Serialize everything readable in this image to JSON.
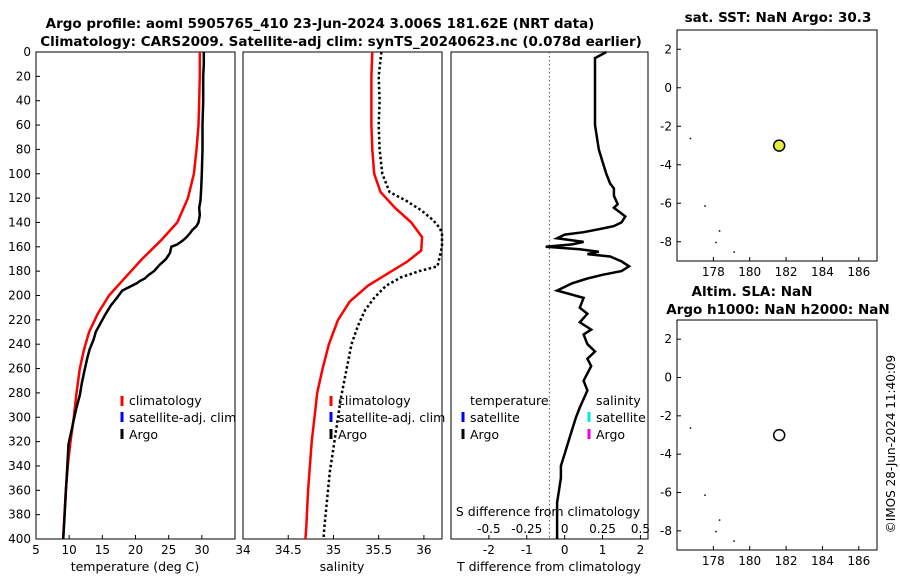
{
  "header": {
    "title_line1": "Argo profile: aoml 5905765_410 23-Jun-2024 3.006S 181.62E (NRT data)",
    "title_line2": "Climatology: CARS2009. Satellite-adj clim: synTS_20240623.nc (0.078d earlier)",
    "sst_title": "sat. SST: NaN Argo: 30.3",
    "sla_title_line1": "Altim. SLA: NaN",
    "sla_title_line2": "Argo h1000: NaN h2000: NaN",
    "timestamp": "©IMOS 28-Jun-2024 11:40:09"
  },
  "colors": {
    "climatology": "#ff0000",
    "satellite": "#0000ff",
    "argo": "#000000",
    "sal_satellite": "#00e5ee",
    "sal_argo": "#ee00ee",
    "marker_sst": "#e4ee3a"
  },
  "chart_data": [
    {
      "type": "line",
      "name": "temperature",
      "xlabel": "temperature (deg C)",
      "xlim": [
        5,
        35
      ],
      "ylim": [
        0,
        400
      ],
      "xticks": [
        "5",
        "10",
        "15",
        "20",
        "25",
        "30"
      ],
      "yticks": [
        "0",
        "20",
        "40",
        "60",
        "80",
        "100",
        "120",
        "140",
        "160",
        "180",
        "200",
        "220",
        "240",
        "260",
        "280",
        "300",
        "320",
        "340",
        "360",
        "380",
        "400"
      ],
      "legend": [
        "climatology",
        "satellite-adj. clim",
        "Argo"
      ],
      "series": [
        {
          "name": "climatology",
          "style": "red",
          "x": [
            29.7,
            29.7,
            29.6,
            29.5,
            29.2,
            28.8,
            27.9,
            26.3,
            23.8,
            21.0,
            18.5,
            16.0,
            14.3,
            13.0,
            12.2,
            11.6,
            11.1,
            10.7,
            10.2,
            9.8,
            9.5,
            9.3,
            9.1
          ],
          "depth": [
            0,
            20,
            40,
            60,
            80,
            100,
            120,
            140,
            155,
            170,
            185,
            200,
            215,
            230,
            245,
            260,
            280,
            300,
            320,
            340,
            360,
            380,
            400
          ]
        },
        {
          "name": "Argo",
          "style": "black",
          "x": [
            30.3,
            30.3,
            30.2,
            30.2,
            30.1,
            30.1,
            30.0,
            29.9,
            29.8,
            29.6,
            29.7,
            29.5,
            29.2,
            28.6,
            28.2,
            27.7,
            27.1,
            26.3,
            25.4,
            25.2,
            24.6,
            23.6,
            22.8,
            22.0,
            21.4,
            20.7,
            20.2,
            18.0,
            17.2,
            16.3,
            15.4,
            14.6,
            14.0,
            13.7,
            13.1,
            12.7,
            12.3,
            11.9,
            11.6,
            11.1,
            10.7,
            10.3,
            9.9,
            9.7,
            9.5,
            9.3,
            9.1
          ],
          "depth": [
            0,
            10,
            20,
            40,
            60,
            80,
            100,
            112,
            122,
            128,
            134,
            140,
            143,
            146,
            149,
            152,
            155,
            158,
            160,
            165,
            170,
            175,
            180,
            183,
            186,
            188,
            190,
            196,
            202,
            208,
            216,
            224,
            230,
            236,
            244,
            252,
            262,
            272,
            282,
            292,
            302,
            312,
            322,
            342,
            362,
            382,
            400
          ]
        }
      ]
    },
    {
      "type": "line",
      "name": "salinity",
      "xlabel": "salinity",
      "xlim": [
        34,
        36.2
      ],
      "ylim": [
        0,
        400
      ],
      "xticks": [
        "34",
        "34.5",
        "35",
        "35.5",
        "36"
      ],
      "legend": [
        "climatology",
        "satellite-adj. clim",
        "Argo"
      ],
      "series": [
        {
          "name": "climatology",
          "style": "red",
          "x": [
            35.43,
            35.42,
            35.42,
            35.42,
            35.43,
            35.45,
            35.52,
            35.68,
            35.86,
            35.98,
            35.97,
            35.82,
            35.6,
            35.38,
            35.18,
            35.05,
            34.95,
            34.88,
            34.82,
            34.79,
            34.76,
            34.74,
            34.72,
            34.71,
            34.7,
            34.69
          ],
          "depth": [
            0,
            20,
            40,
            60,
            80,
            100,
            115,
            128,
            140,
            152,
            163,
            172,
            182,
            192,
            205,
            220,
            240,
            260,
            280,
            300,
            320,
            340,
            360,
            375,
            390,
            400
          ]
        },
        {
          "name": "Argo",
          "style": "dotted",
          "x": [
            35.53,
            35.5,
            35.51,
            35.5,
            35.51,
            35.54,
            35.62,
            35.8,
            35.97,
            36.1,
            36.18,
            36.2,
            36.2,
            36.15,
            35.95,
            35.75,
            35.58,
            35.45,
            35.35,
            35.27,
            35.2,
            35.16,
            35.12,
            35.08,
            35.05,
            35.02,
            34.99,
            34.96,
            34.94,
            34.92,
            34.9,
            34.89
          ],
          "depth": [
            0,
            20,
            40,
            60,
            80,
            100,
            115,
            122,
            130,
            138,
            145,
            150,
            160,
            176,
            180,
            185,
            192,
            202,
            212,
            225,
            240,
            255,
            270,
            285,
            300,
            315,
            330,
            345,
            360,
            375,
            390,
            400
          ]
        }
      ]
    },
    {
      "type": "line",
      "name": "T difference",
      "xlabel": "T difference from climatology",
      "xlim": [
        -3,
        2.2
      ],
      "ylim": [
        0,
        400
      ],
      "xticks": [
        "-2",
        "-1",
        "0",
        "1",
        "2"
      ],
      "top_axis_label": "S difference from climatology",
      "top_xticks": [
        "-0.5",
        "-0.25",
        "0",
        "0.25",
        "0.5"
      ],
      "legend_temperature": [
        "temperature",
        "satellite",
        "Argo"
      ],
      "legend_salinity": [
        "salinity",
        "satellite",
        "Argo"
      ],
      "series": [
        {
          "name": "Argo T diff",
          "x": [
            1.1,
            0.8,
            0.8,
            0.8,
            0.8,
            0.9,
            1.0,
            1.1,
            1.2,
            1.3,
            1.3,
            1.4,
            1.3,
            1.6,
            1.5,
            1.3,
            1.0,
            0.5,
            0.0,
            -0.2,
            0.5,
            0.2,
            -0.5,
            0.4,
            0.9,
            0.6,
            1.2,
            1.5,
            1.7,
            1.5,
            1.0,
            0.6,
            0.2,
            -0.2,
            0.5,
            0.4,
            0.6,
            0.4,
            0.7,
            0.5,
            0.6,
            0.8,
            0.6,
            0.7,
            0.6,
            0.5,
            0.6,
            0.5,
            0.4,
            0.3,
            0.2,
            0.1,
            0.0,
            -0.1,
            -0.1,
            -0.15,
            -0.2,
            -0.2,
            -0.2
          ],
          "depth": [
            0,
            5,
            20,
            40,
            60,
            80,
            90,
            100,
            108,
            112,
            118,
            125,
            128,
            135,
            140,
            143,
            145,
            148,
            150,
            153,
            156,
            158,
            160,
            162,
            164,
            166,
            168,
            172,
            176,
            180,
            183,
            186,
            190,
            196,
            202,
            210,
            215,
            222,
            228,
            232,
            240,
            246,
            252,
            258,
            264,
            270,
            278,
            285,
            292,
            300,
            310,
            320,
            330,
            340,
            350,
            360,
            370,
            385,
            400
          ]
        }
      ]
    },
    {
      "type": "scatter",
      "name": "sat. SST map",
      "xlim": [
        176,
        187
      ],
      "ylim": [
        -9,
        3
      ],
      "xticks": [
        "178",
        "180",
        "182",
        "184",
        "186"
      ],
      "yticks": [
        "2",
        "0",
        "-2",
        "-4",
        "-6",
        "-8"
      ],
      "points": [
        {
          "x": 181.62,
          "y": -3.006,
          "value": 30.3
        }
      ],
      "islands": [
        [
          176.7,
          -2.6
        ],
        [
          177.5,
          -6.1
        ],
        [
          178.3,
          -7.4
        ],
        [
          178.1,
          -8.0
        ],
        [
          179.1,
          -8.5
        ]
      ]
    },
    {
      "type": "scatter",
      "name": "Altim. SLA map",
      "xlim": [
        176,
        187
      ],
      "ylim": [
        -9,
        3
      ],
      "xticks": [
        "178",
        "180",
        "182",
        "184",
        "186"
      ],
      "yticks": [
        "2",
        "0",
        "-2",
        "-4",
        "-6",
        "-8"
      ],
      "points": [
        {
          "x": 181.62,
          "y": -3.006
        }
      ],
      "islands": [
        [
          176.7,
          -2.6
        ],
        [
          177.5,
          -6.1
        ],
        [
          178.3,
          -7.4
        ],
        [
          178.1,
          -8.0
        ],
        [
          179.1,
          -8.5
        ]
      ]
    }
  ]
}
